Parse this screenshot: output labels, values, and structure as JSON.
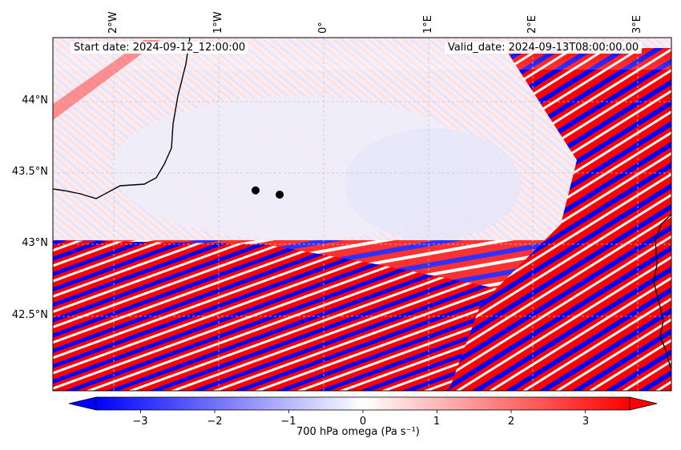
{
  "map": {
    "start_date": "Start date: 2024-09-12_12:00:00",
    "valid_date": "Valid_date: 2024-09-13T08:00:00.00",
    "x_ticks": [
      "2°W",
      "1°W",
      "0°",
      "1°E",
      "2°E",
      "3°E"
    ],
    "y_ticks": [
      "44°N",
      "43.5°N",
      "43°N",
      "42.5°N"
    ],
    "points": [
      {
        "lon": -0.65,
        "lat": 43.38
      },
      {
        "lon": -0.42,
        "lat": 43.35
      }
    ]
  },
  "colorbar": {
    "label": "700 hPa omega (Pa s⁻¹)",
    "ticks": [
      "−3",
      "−2",
      "−1",
      "0",
      "1",
      "2",
      "3"
    ],
    "tick_values": [
      -3,
      -2,
      -1,
      0,
      1,
      2,
      3
    ],
    "range": [
      -3.6,
      3.6
    ],
    "min_color": "#0000ff",
    "mid_color": "#ffffff",
    "max_color": "#ff0000",
    "extend": "both"
  },
  "colors": {
    "coastline": "#000000",
    "points": "#000000",
    "grid": "#c8c8c8"
  }
}
